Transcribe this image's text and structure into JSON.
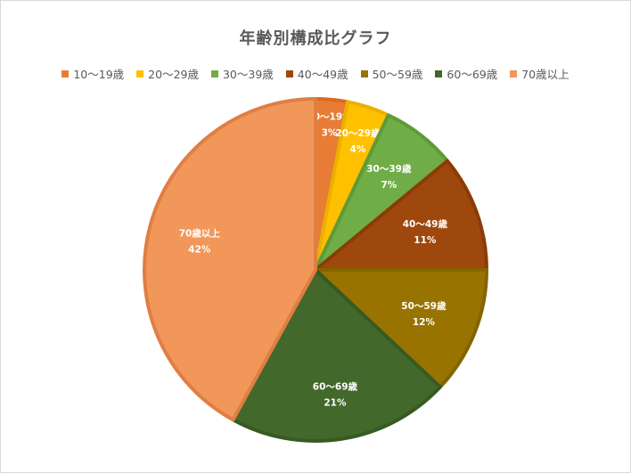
{
  "chart_data": {
    "type": "pie",
    "title": "年齢別構成比グラフ",
    "legend_position": "top",
    "categories": [
      "10〜19歳",
      "20〜29歳",
      "30〜39歳",
      "40〜49歳",
      "50〜59歳",
      "60〜69歳",
      "70歳以上"
    ],
    "values": [
      3,
      4,
      7,
      11,
      12,
      21,
      42
    ],
    "value_labels": [
      "3%",
      "4%",
      "7%",
      "11%",
      "12%",
      "21%",
      "42%"
    ],
    "colors": [
      "#E87C35",
      "#FFC000",
      "#70AD47",
      "#9E480E",
      "#997300",
      "#43682B",
      "#F1975A"
    ],
    "border_colors": [
      "#D96A1F",
      "#EBB000",
      "#5F9A38",
      "#8A3C08",
      "#856400",
      "#375A22",
      "#E07E43"
    ]
  }
}
